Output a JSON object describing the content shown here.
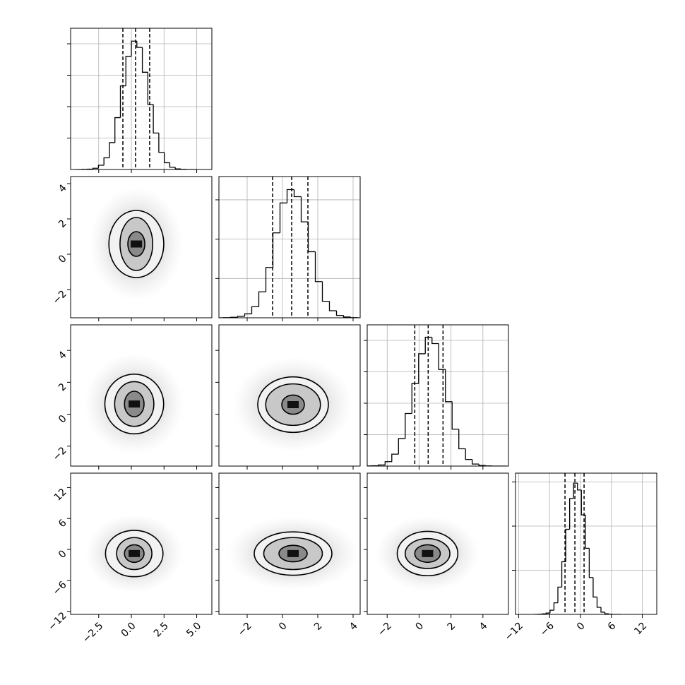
{
  "chart_data": {
    "type": "corner",
    "parameters": [
      {
        "lim": [
          -4.65,
          6.16
        ],
        "ticks": [
          {
            "value": -2.5,
            "label": "−2.5"
          },
          {
            "value": 0,
            "label": "0.0"
          },
          {
            "value": 2.5,
            "label": "2.5"
          },
          {
            "value": 5,
            "label": "5.0"
          }
        ],
        "bins": [
          -4.2,
          -3.78,
          -3.36,
          -2.94,
          -2.52,
          -2.1,
          -1.68,
          -1.26,
          -0.84,
          -0.42,
          0,
          0.42,
          0.84,
          1.26,
          1.68,
          2.1,
          2.52,
          2.94,
          3.36,
          3.78,
          4.2,
          4.62,
          5.04
        ],
        "counts": [
          0,
          1,
          2,
          8,
          27,
          74,
          171,
          330,
          532,
          720,
          817,
          777,
          619,
          414,
          232,
          109,
          43,
          14,
          4,
          1,
          0,
          0
        ],
        "quantiles": [
          -0.65,
          0.32,
          1.4
        ],
        "hist_ylim": [
          0,
          899
        ],
        "hist_yticks": [
          200,
          400,
          600,
          800
        ],
        "pairs": []
      },
      {
        "lim": [
          -3.6,
          4.4
        ],
        "ticks": [
          {
            "value": -2,
            "label": "−2"
          },
          0,
          2,
          4
        ],
        "bins": [
          -3.74,
          -3.34,
          -2.94,
          -2.54,
          -2.14,
          -1.74,
          -1.34,
          -0.94,
          -0.54,
          -0.14,
          0.26,
          0.66,
          1.06,
          1.46,
          1.86,
          2.26,
          2.66,
          3.06,
          3.46,
          3.86,
          4.26,
          4.66,
          5.06
        ],
        "counts": [
          0,
          1,
          3,
          9,
          25,
          70,
          165,
          320,
          540,
          730,
          815,
          770,
          610,
          420,
          230,
          105,
          45,
          15,
          5,
          1,
          0,
          0
        ],
        "quantiles": [
          -0.56,
          0.52,
          1.44
        ],
        "hist_ylim": [
          0,
          898
        ],
        "hist_yticks": [
          250,
          500,
          750
        ],
        "pairs": [
          {
            "center": [
              0.38,
              0.58
            ],
            "contours": [
              [
                2.1,
                1.9
              ],
              [
                1.25,
                1.5
              ],
              [
                0.65,
                0.7
              ]
            ]
          }
        ]
      },
      {
        "lim": [
          -3.25,
          5.6
        ],
        "ticks": [
          {
            "value": -2,
            "label": "−2"
          },
          0,
          2,
          4
        ],
        "bins": [
          -3.81,
          -3.39,
          -2.97,
          -2.55,
          -2.13,
          -1.71,
          -1.29,
          -0.87,
          -0.45,
          -0.03,
          0.39,
          0.81,
          1.23,
          1.65,
          2.07,
          2.49,
          2.91,
          3.33,
          3.75,
          4.17,
          4.59,
          5.01,
          5.43
        ],
        "counts": [
          0,
          1,
          2,
          7,
          28,
          76,
          175,
          335,
          525,
          715,
          820,
          780,
          615,
          410,
          235,
          110,
          42,
          13,
          4,
          1,
          0,
          0
        ],
        "quantiles": [
          -0.27,
          0.57,
          1.5
        ],
        "hist_ylim": [
          0,
          899
        ],
        "hist_yticks": [
          200,
          400,
          600,
          800
        ],
        "pairs": [
          {
            "center": [
              0.22,
              0.64
            ],
            "contours": [
              [
                2.25,
                1.87
              ],
              [
                1.5,
                1.4
              ],
              [
                0.75,
                0.8
              ]
            ]
          },
          {
            "center": [
              0.6,
              0.6
            ],
            "contours": [
              [
                2.0,
                1.74
              ],
              [
                1.55,
                1.3
              ],
              [
                0.64,
                0.6
              ]
            ]
          }
        ]
      },
      {
        "lim": [
          -12.6,
          14.8
        ],
        "ticks": [
          {
            "value": -12,
            "label": "−12"
          },
          {
            "value": -6,
            "label": "−6"
          },
          0,
          6,
          12
        ],
        "bins": [
          -8.94,
          -8.18,
          -7.42,
          -6.66,
          -5.9,
          -5.14,
          -4.38,
          -3.62,
          -2.86,
          -2.1,
          -1.34,
          -0.58,
          0.18,
          0.94,
          1.7,
          2.46,
          3.22,
          3.98,
          4.74,
          5.5,
          6.26,
          7.02,
          7.78
        ],
        "counts": [
          0,
          1,
          3,
          8,
          26,
          72,
          170,
          328,
          530,
          722,
          818,
          775,
          620,
          412,
          230,
          108,
          44,
          14,
          4,
          1,
          0,
          0
        ],
        "quantiles": [
          -3.0,
          -1.08,
          0.7
        ],
        "hist_ylim": [
          0,
          880
        ],
        "hist_yticks": [
          275,
          550,
          825
        ],
        "pairs": [
          {
            "center": [
              0.22,
              -0.8
            ],
            "contours": [
              [
                2.2,
                4.5
              ],
              [
                1.35,
                3.1
              ],
              [
                0.75,
                1.7
              ]
            ]
          },
          {
            "center": [
              0.6,
              -0.8
            ],
            "contours": [
              [
                2.2,
                4.2
              ],
              [
                1.66,
                3.1
              ],
              [
                0.8,
                1.6
              ]
            ]
          },
          {
            "center": [
              0.53,
              -0.8
            ],
            "contours": [
              [
                1.9,
                4.3
              ],
              [
                1.4,
                2.9
              ],
              [
                0.8,
                1.7
              ]
            ]
          }
        ]
      }
    ]
  }
}
